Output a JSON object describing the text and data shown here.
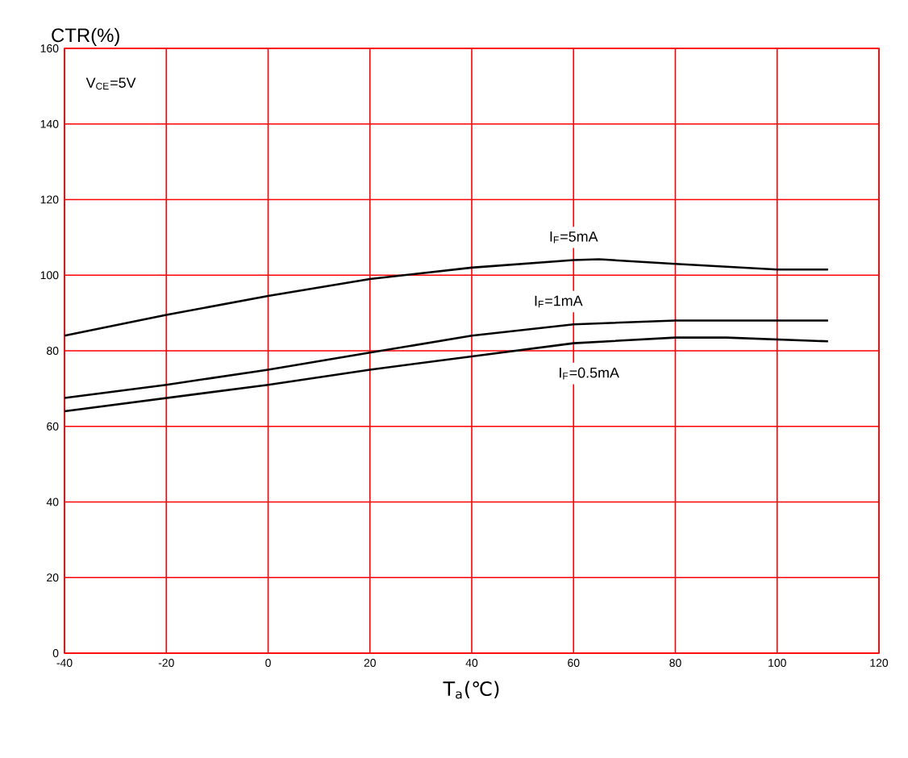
{
  "chart_data": {
    "type": "line",
    "xlabel": "T$_{a}$(℃)",
    "ylabel": "CTR(%)",
    "annotations": [
      "V$_{CE}$=5V"
    ],
    "xlim": [
      -40,
      120
    ],
    "ylim": [
      0,
      160
    ],
    "xticks": [
      -40,
      -20,
      0,
      20,
      40,
      60,
      80,
      100,
      120
    ],
    "yticks": [
      0,
      20,
      40,
      60,
      80,
      100,
      120,
      140,
      160
    ],
    "grid": true,
    "series": [
      {
        "name": "I$_{F}$=5mA",
        "color": "#000000",
        "x": [
          -40,
          -20,
          0,
          20,
          40,
          60,
          65,
          80,
          100,
          110
        ],
        "values": [
          84,
          89.5,
          94.5,
          99,
          102,
          104,
          104.2,
          103,
          101.5,
          101.5
        ]
      },
      {
        "name": "I$_{F}$=1mA",
        "color": "#000000",
        "x": [
          -40,
          -20,
          0,
          20,
          40,
          60,
          80,
          100,
          110
        ],
        "values": [
          67.5,
          71,
          75,
          79.5,
          84,
          87,
          88,
          88,
          88
        ]
      },
      {
        "name": "I$_{F}$=0.5mA",
        "color": "#000000",
        "x": [
          -40,
          -20,
          0,
          20,
          40,
          60,
          80,
          90,
          110
        ],
        "values": [
          64,
          67.5,
          71,
          75,
          78.5,
          82,
          83.5,
          83.5,
          82.5
        ]
      }
    ]
  }
}
